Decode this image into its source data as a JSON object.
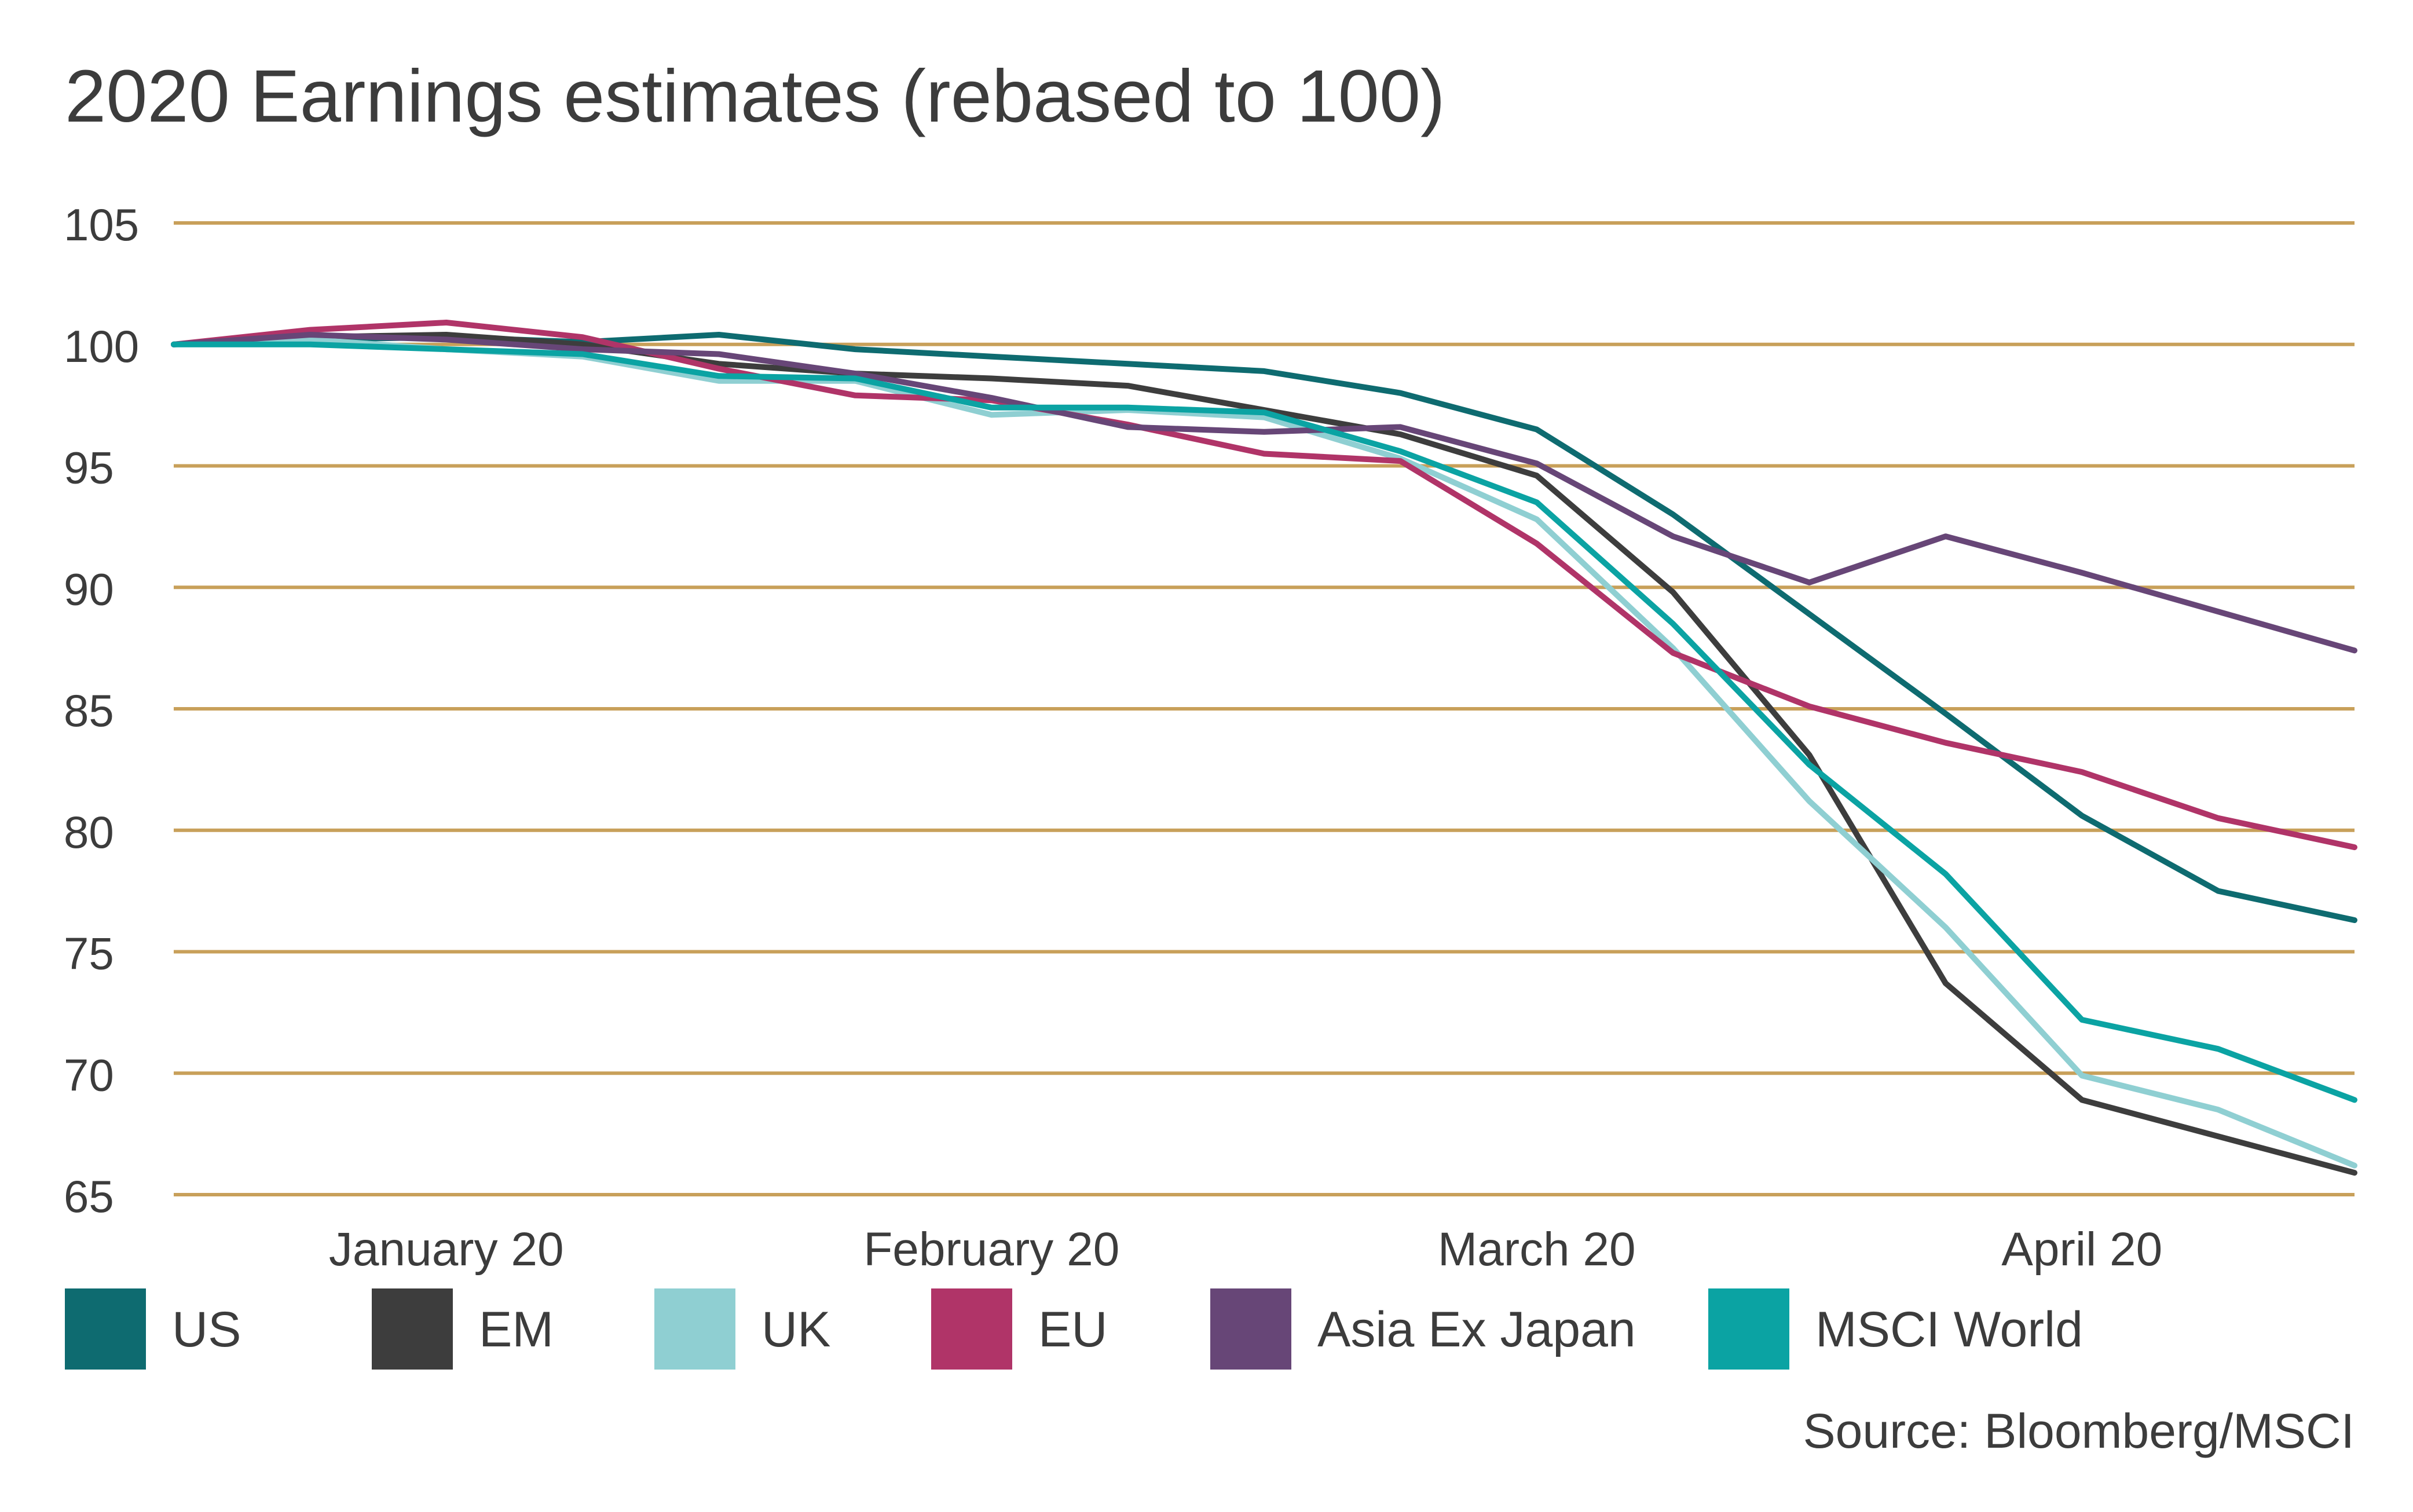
{
  "chart_data": {
    "type": "line",
    "title": "2020 Earnings estimates (rebased to 100)",
    "xlabel": "",
    "ylabel": "",
    "ylim": [
      65,
      105
    ],
    "yticks": [
      105,
      100,
      95,
      90,
      85,
      80,
      75,
      70,
      65
    ],
    "x": [
      0,
      1,
      2,
      3,
      4,
      5,
      6,
      7,
      8,
      9,
      10,
      11,
      12,
      13,
      14,
      15,
      16
    ],
    "xticks": [
      {
        "x": 2,
        "label": "January 20"
      },
      {
        "x": 6,
        "label": "February 20"
      },
      {
        "x": 10,
        "label": "March 20"
      },
      {
        "x": 14,
        "label": "April 20"
      }
    ],
    "grid": true,
    "legend_position": "bottom",
    "source": "Source: Bloomberg/MSCI",
    "series": [
      {
        "name": "US",
        "color": "#0e6b70",
        "values": [
          100,
          100.2,
          100.3,
          100.1,
          100.4,
          99.8,
          99.5,
          99.2,
          98.9,
          98.0,
          96.5,
          93.0,
          88.9,
          84.8,
          80.6,
          77.5,
          76.3
        ]
      },
      {
        "name": "EM",
        "color": "#3d3d3d",
        "values": [
          100,
          100.3,
          100.4,
          100.0,
          99.2,
          98.8,
          98.6,
          98.3,
          97.3,
          96.3,
          94.6,
          89.8,
          83.1,
          73.7,
          68.9,
          67.4,
          65.9
        ]
      },
      {
        "name": "UK",
        "color": "#8fcfd2",
        "values": [
          100,
          100.2,
          99.8,
          99.5,
          98.5,
          98.5,
          97.1,
          97.3,
          97.0,
          95.3,
          92.8,
          87.5,
          81.2,
          76.0,
          69.9,
          68.5,
          66.2
        ]
      },
      {
        "name": "EU",
        "color": "#b03468",
        "values": [
          100,
          100.6,
          100.9,
          100.3,
          99.0,
          97.9,
          97.7,
          96.7,
          95.5,
          95.2,
          91.8,
          87.3,
          85.1,
          83.6,
          82.4,
          80.5,
          79.3
        ]
      },
      {
        "name": "Asia Ex Japan",
        "color": "#674677",
        "values": [
          100,
          100.4,
          100.2,
          99.8,
          99.6,
          98.8,
          97.8,
          96.6,
          96.4,
          96.6,
          95.1,
          92.1,
          90.2,
          92.1,
          90.6,
          89.0,
          87.4
        ]
      },
      {
        "name": "MSCI World",
        "color": "#0ba3a3",
        "values": [
          100,
          100.0,
          99.8,
          99.6,
          98.7,
          98.6,
          97.4,
          97.4,
          97.2,
          95.6,
          93.5,
          88.5,
          82.7,
          78.2,
          72.2,
          71.0,
          68.9
        ]
      }
    ]
  }
}
